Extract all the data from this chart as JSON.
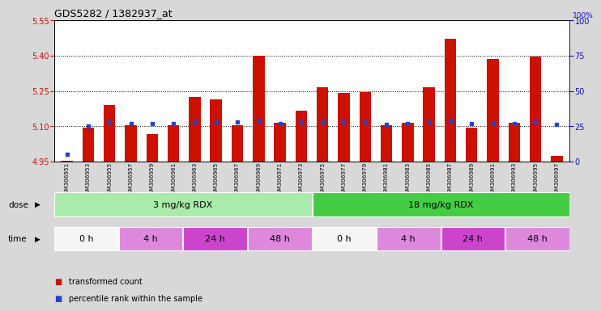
{
  "title": "GDS5282 / 1382937_at",
  "samples": [
    "GSM306951",
    "GSM306953",
    "GSM306955",
    "GSM306957",
    "GSM306959",
    "GSM306961",
    "GSM306963",
    "GSM306965",
    "GSM306967",
    "GSM306969",
    "GSM306971",
    "GSM306973",
    "GSM306975",
    "GSM306977",
    "GSM306979",
    "GSM306981",
    "GSM306983",
    "GSM306985",
    "GSM306987",
    "GSM306989",
    "GSM306991",
    "GSM306993",
    "GSM306995",
    "GSM306997"
  ],
  "transformed_count": [
    4.953,
    5.095,
    5.19,
    5.105,
    5.065,
    5.105,
    5.225,
    5.215,
    5.105,
    5.4,
    5.115,
    5.165,
    5.265,
    5.24,
    5.245,
    5.105,
    5.115,
    5.265,
    5.47,
    5.095,
    5.385,
    5.115,
    5.395,
    4.975
  ],
  "percentile_rank": [
    5,
    25,
    28,
    27,
    27,
    27,
    28,
    28,
    28,
    29,
    27,
    28,
    28,
    28,
    28,
    26,
    27,
    28,
    29,
    27,
    27,
    27,
    28,
    26
  ],
  "bar_color": "#cc1100",
  "dot_color": "#2244cc",
  "ylim_left": [
    4.95,
    5.55
  ],
  "ylim_right": [
    0,
    100
  ],
  "yticks_left": [
    4.95,
    5.1,
    5.25,
    5.4,
    5.55
  ],
  "yticks_right": [
    0,
    25,
    50,
    75,
    100
  ],
  "grid_lines": [
    5.1,
    5.25,
    5.4
  ],
  "dose_groups": [
    {
      "label": "3 mg/kg RDX",
      "start": 0,
      "end": 12,
      "color": "#aaeaaa"
    },
    {
      "label": "18 mg/kg RDX",
      "start": 12,
      "end": 24,
      "color": "#44cc44"
    }
  ],
  "time_groups": [
    {
      "label": "0 h",
      "start": 0,
      "end": 3,
      "color": "#f5f5f5"
    },
    {
      "label": "4 h",
      "start": 3,
      "end": 6,
      "color": "#dd88dd"
    },
    {
      "label": "24 h",
      "start": 6,
      "end": 9,
      "color": "#cc44cc"
    },
    {
      "label": "48 h",
      "start": 9,
      "end": 12,
      "color": "#dd88dd"
    },
    {
      "label": "0 h",
      "start": 12,
      "end": 15,
      "color": "#f5f5f5"
    },
    {
      "label": "4 h",
      "start": 15,
      "end": 18,
      "color": "#dd88dd"
    },
    {
      "label": "24 h",
      "start": 18,
      "end": 21,
      "color": "#cc44cc"
    },
    {
      "label": "48 h",
      "start": 21,
      "end": 24,
      "color": "#dd88dd"
    }
  ],
  "legend_items": [
    {
      "label": "transformed count",
      "color": "#cc1100"
    },
    {
      "label": "percentile rank within the sample",
      "color": "#2244cc"
    }
  ],
  "background_color": "#d8d8d8",
  "plot_bg_color": "#ffffff",
  "xaxis_bg_color": "#cccccc"
}
